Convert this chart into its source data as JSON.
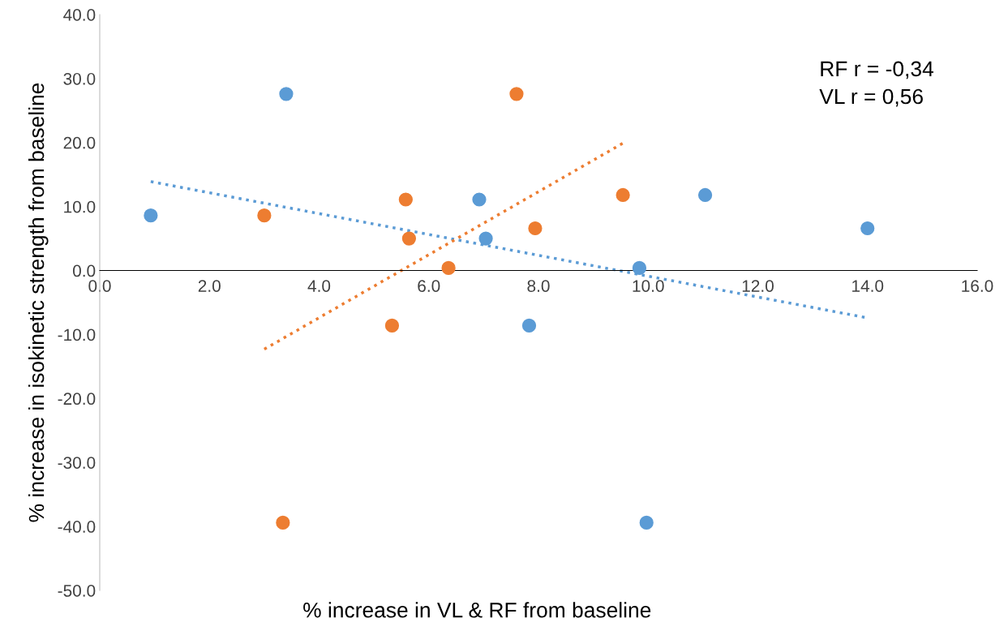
{
  "chart_data": {
    "type": "scatter",
    "xlabel": "% increase in VL & RF from baseline",
    "ylabel": "% increase in isokinetic strength from baseline",
    "annotations": [
      "RF r = -0,34\nVL r = 0,56"
    ],
    "series": [
      {
        "color": "#5b9bd5",
        "x": [
          0.93,
          3.4,
          6.92,
          7.04,
          7.83,
          9.84,
          11.04,
          14.0,
          9.97
        ],
        "values": [
          8.6,
          27.6,
          11.1,
          5.0,
          -8.6,
          0.4,
          11.8,
          6.6,
          -39.4
        ]
      },
      {
        "color": "#ed7d31",
        "x": [
          3.0,
          3.34,
          5.58,
          5.64,
          5.33,
          6.36,
          7.6,
          7.94,
          9.54
        ],
        "values": [
          8.6,
          -39.4,
          11.1,
          5.0,
          -8.6,
          0.4,
          27.6,
          6.6,
          11.8
        ]
      },
      {
        "type": "line",
        "marker": "none",
        "color": "#5b9bd5",
        "line_style": "dotted",
        "x": [
          0.93,
          14.0
        ],
        "values": [
          13.9,
          -7.4
        ]
      },
      {
        "type": "line",
        "marker": "none",
        "color": "#ed7d31",
        "line_style": "dotted",
        "x": [
          3.0,
          9.54
        ],
        "values": [
          -12.3,
          19.9
        ]
      }
    ],
    "marker": "circle",
    "grid": false,
    "xlim": [
      0,
      16
    ],
    "ylim": [
      -50,
      40
    ],
    "xticks": [
      {
        "value": 0,
        "label": "0.0"
      },
      {
        "value": 2,
        "label": "2.0"
      },
      {
        "value": 4,
        "label": "4.0"
      },
      {
        "value": 6,
        "label": "6.0"
      },
      {
        "value": 8,
        "label": "8.0"
      },
      {
        "value": 10,
        "label": "10.0"
      },
      {
        "value": 12,
        "label": "12.0"
      },
      {
        "value": 14,
        "label": "14.0"
      },
      {
        "value": 16,
        "label": "16.0"
      }
    ],
    "yticks": [
      {
        "value": -50,
        "label": "-50.0"
      },
      {
        "value": -40,
        "label": "-40.0"
      },
      {
        "value": -30,
        "label": "-30.0"
      },
      {
        "value": -20,
        "label": "-20.0"
      },
      {
        "value": -10,
        "label": "-10.0"
      },
      {
        "value": 0,
        "label": "0.0"
      },
      {
        "value": 10,
        "label": "10.0"
      },
      {
        "value": 20,
        "label": "20.0"
      },
      {
        "value": 30,
        "label": "30.0"
      },
      {
        "value": 40,
        "label": "40.0"
      }
    ]
  }
}
